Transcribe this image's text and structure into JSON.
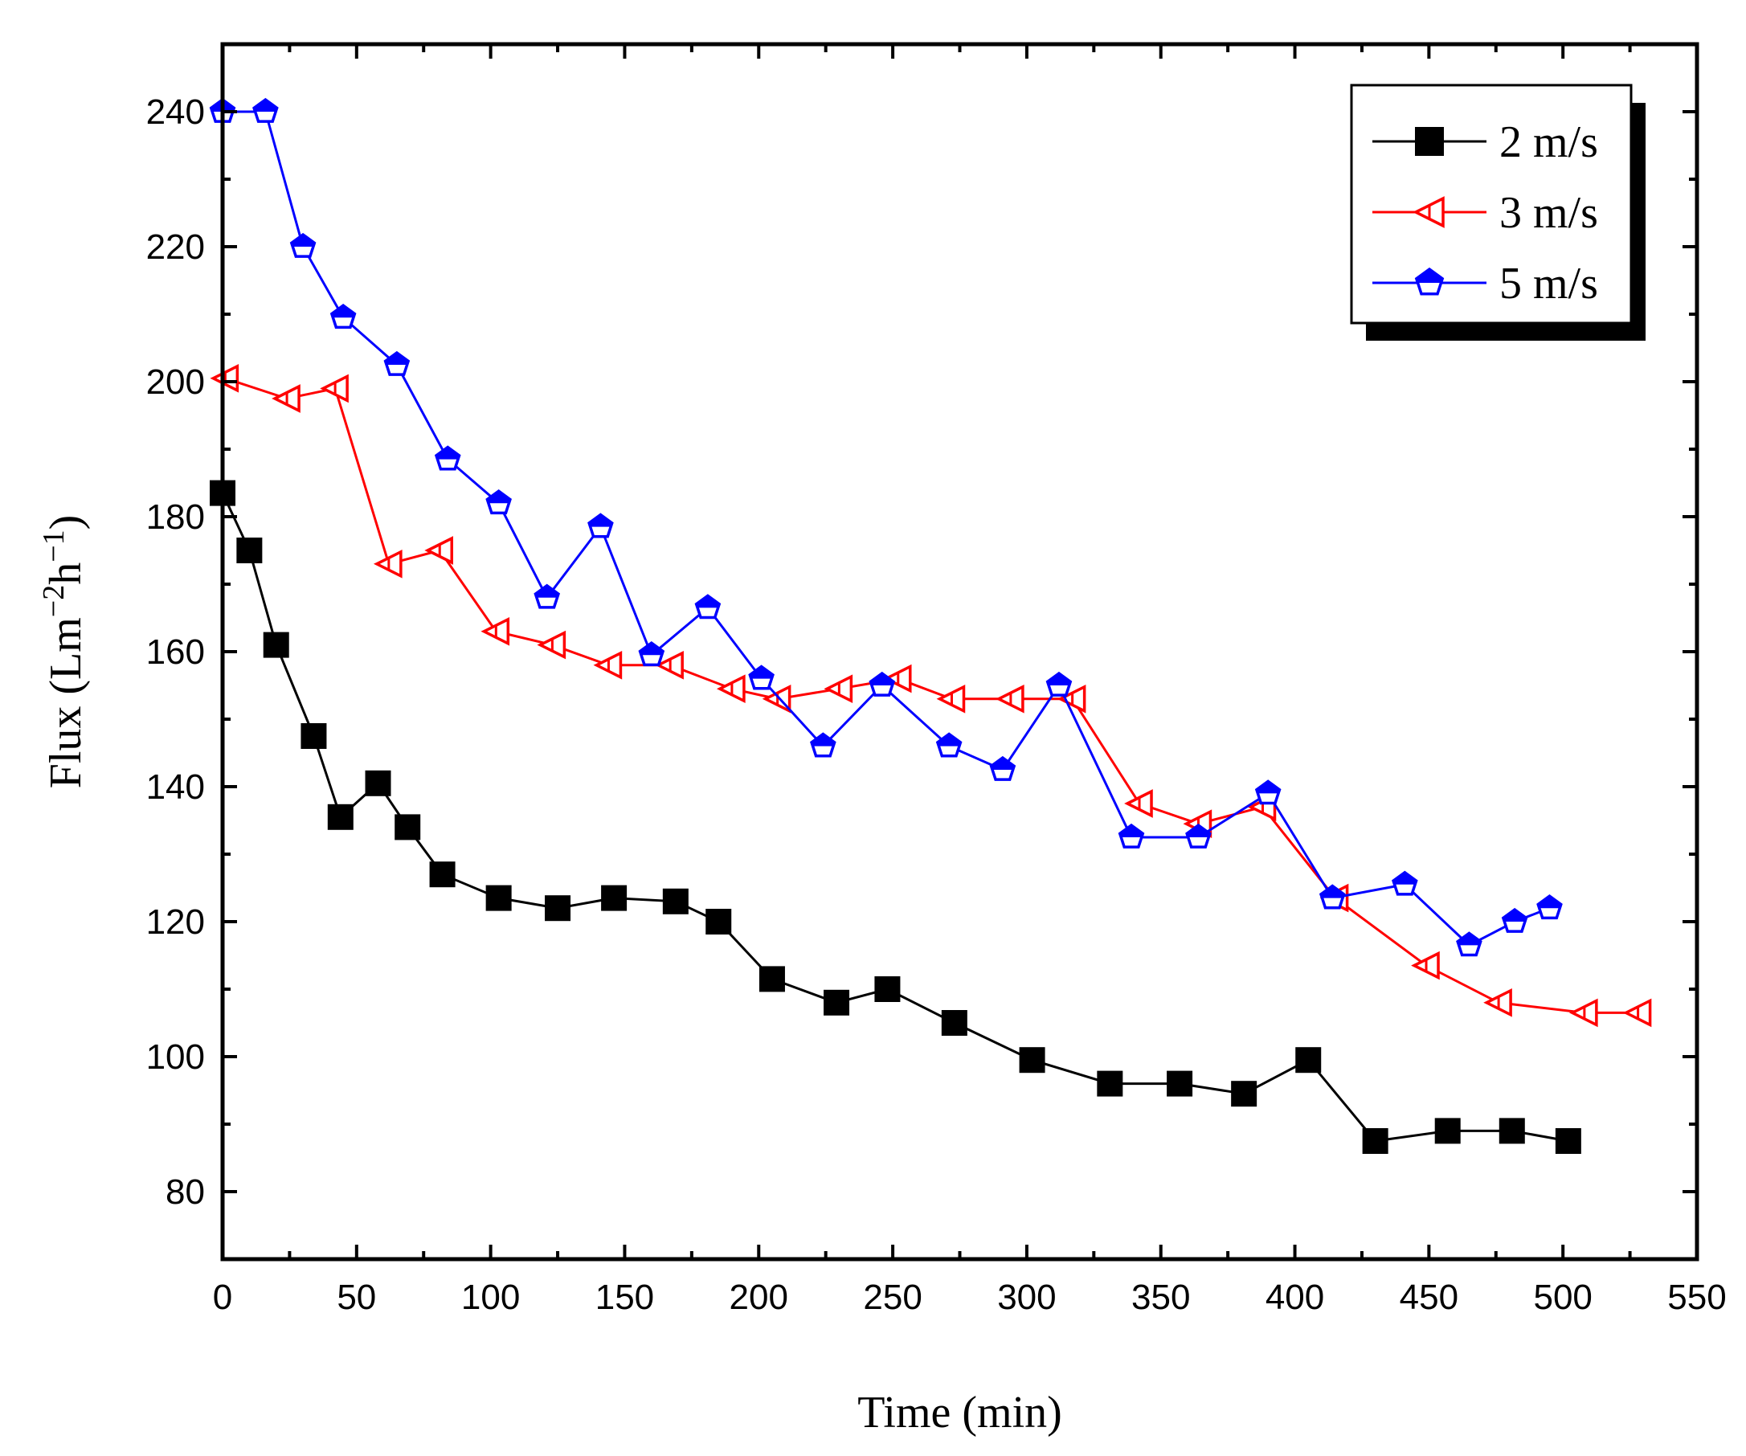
{
  "chart_data": {
    "type": "line",
    "xlabel": "Time (min)",
    "ylabel": "Flux (Lm",
    "ylabel_sup1": "−2",
    "ylabel_mid": "h",
    "ylabel_sup2": "−1",
    "ylabel_end": ")",
    "xlim": [
      0,
      550
    ],
    "ylim": [
      70,
      250
    ],
    "x_ticks": [
      0,
      50,
      100,
      150,
      200,
      250,
      300,
      350,
      400,
      450,
      500,
      550
    ],
    "y_ticks": [
      80,
      100,
      120,
      140,
      160,
      180,
      200,
      220,
      240
    ],
    "grid": false,
    "legend_position": "top-right",
    "series": [
      {
        "name": "2 m/s",
        "color": "#000000",
        "marker": "filled-square",
        "x": [
          0,
          10,
          20,
          34,
          44,
          58,
          69,
          82,
          103,
          125,
          146,
          169,
          185,
          205,
          229,
          248,
          273,
          302,
          331,
          357,
          381,
          405,
          430,
          457,
          481,
          502
        ],
        "y": [
          183.5,
          175,
          161,
          147.5,
          135.5,
          140.5,
          134,
          127,
          123.5,
          122,
          123.5,
          123,
          120,
          111.5,
          108,
          110,
          105,
          99.5,
          96,
          96,
          94.5,
          99.5,
          87.5,
          89,
          89,
          87.5
        ]
      },
      {
        "name": "3 m/s",
        "color": "#ff0000",
        "marker": "left-triangle-open",
        "x": [
          1,
          24,
          42,
          62,
          81,
          102,
          123,
          144,
          167,
          190,
          207,
          230,
          252,
          272,
          294,
          317,
          342,
          364,
          388,
          415,
          449,
          476,
          508,
          528
        ],
        "y": [
          200.5,
          197.5,
          199,
          173,
          175,
          163,
          161,
          158,
          158,
          154.5,
          153,
          154.5,
          156,
          153,
          153,
          153,
          137.5,
          134.5,
          137,
          123.5,
          113.5,
          108,
          106.5,
          106.5
        ]
      },
      {
        "name": "5 m/s",
        "color": "#0000ff",
        "marker": "pentagon",
        "x": [
          0,
          16,
          30,
          45,
          65,
          84,
          103,
          121,
          141,
          160,
          181,
          201,
          224,
          246,
          271,
          291,
          312,
          339,
          364,
          390,
          414,
          441,
          465,
          482,
          495
        ],
        "y": [
          240,
          240,
          220,
          209.5,
          202.5,
          188.5,
          182,
          168,
          178.5,
          159.5,
          166.5,
          156,
          146,
          155,
          146,
          142.5,
          155,
          132.5,
          132.5,
          139,
          123.5,
          125.5,
          116.5,
          120,
          122
        ]
      }
    ]
  }
}
